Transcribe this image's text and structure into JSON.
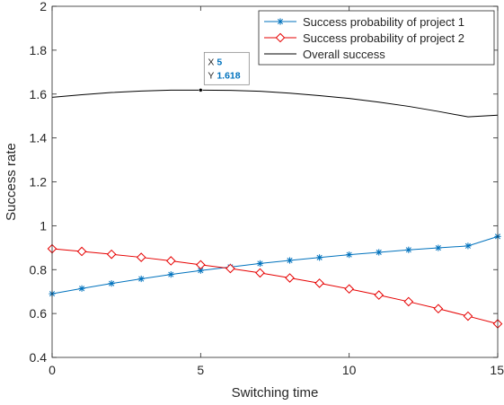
{
  "chart_data": {
    "type": "line",
    "xlabel": "Switching time",
    "ylabel": "Success rate",
    "xlim": [
      0,
      15
    ],
    "ylim": [
      0.4,
      2
    ],
    "xticks": [
      0,
      5,
      10,
      15
    ],
    "yticks": [
      0.4,
      0.6,
      0.8,
      1,
      1.2,
      1.4,
      1.6,
      1.8,
      2
    ],
    "xtick_labels": [
      "0",
      "5",
      "10",
      "15"
    ],
    "ytick_labels": [
      "0.4",
      "0.6",
      "0.8",
      "1",
      "1.2",
      "1.4",
      "1.6",
      "1.8",
      "2"
    ],
    "grid": false,
    "legend_position": "top-right",
    "x": [
      0,
      1,
      2,
      3,
      4,
      5,
      6,
      7,
      8,
      9,
      10,
      11,
      12,
      13,
      14,
      15
    ],
    "series": [
      {
        "name": "Success probability of project 1",
        "color": "#0072BD",
        "marker": "asterisk",
        "values": [
          0.69,
          0.714,
          0.737,
          0.758,
          0.778,
          0.796,
          0.812,
          0.828,
          0.842,
          0.855,
          0.868,
          0.879,
          0.89,
          0.899,
          0.908,
          0.951
        ]
      },
      {
        "name": "Success probability of project 2",
        "color": "#E60000",
        "marker": "diamond",
        "values": [
          0.895,
          0.883,
          0.87,
          0.856,
          0.84,
          0.822,
          0.805,
          0.785,
          0.762,
          0.738,
          0.712,
          0.684,
          0.654,
          0.622,
          0.588,
          0.553
        ]
      },
      {
        "name": "Overall success",
        "color": "#000000",
        "marker": "none",
        "values": [
          1.585,
          1.597,
          1.607,
          1.614,
          1.618,
          1.618,
          1.617,
          1.613,
          1.604,
          1.593,
          1.58,
          1.563,
          1.544,
          1.521,
          1.496,
          1.504
        ]
      }
    ],
    "datatip": {
      "x_label": "X",
      "x_value": "5",
      "y_label": "Y",
      "y_value": "1.618",
      "series_index": 2,
      "point_index": 5
    }
  }
}
